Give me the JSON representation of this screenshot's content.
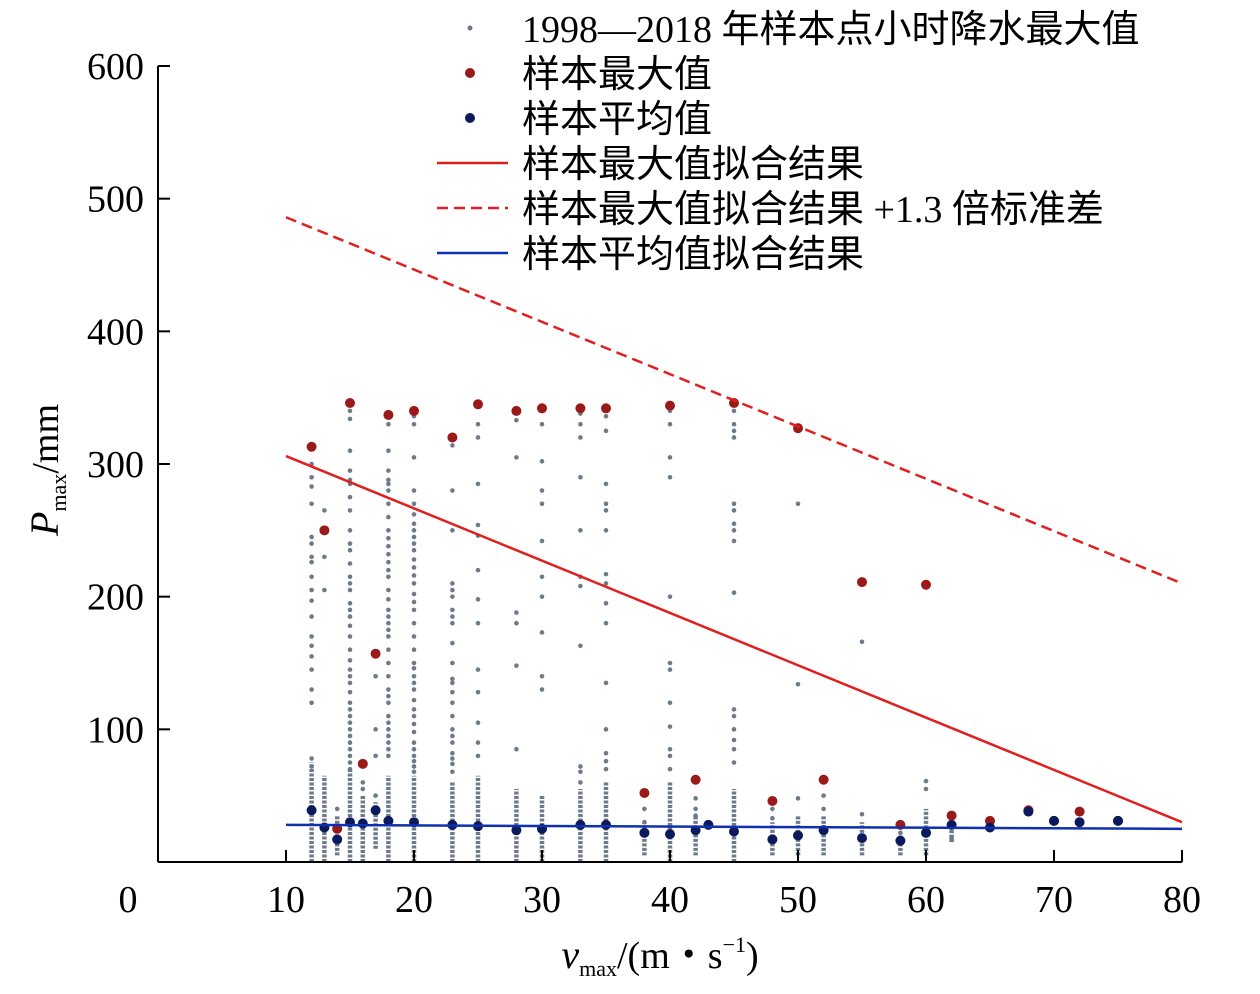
{
  "chart_data": {
    "type": "scatter",
    "xlabel": {
      "base": "v",
      "sub": "max",
      "unit": "/(m・s",
      "sup": "−1",
      "close": ")"
    },
    "ylabel": {
      "base": "P",
      "sub": "max",
      "unit": "/mm"
    },
    "xlim": [
      0,
      80
    ],
    "ylim": [
      0,
      600
    ],
    "xticks": [
      0,
      10,
      20,
      30,
      40,
      50,
      60,
      70,
      80
    ],
    "yticks": [
      100,
      200,
      300,
      400,
      500,
      600
    ],
    "grid": false,
    "legend_position": "top-right",
    "legend": [
      {
        "label": "1998—2018 年样本点小时降水最大值",
        "kind": "dot-small",
        "color": "#6e7a8a"
      },
      {
        "label": "样本最大值",
        "kind": "dot",
        "color": "#9a1a1a"
      },
      {
        "label": "样本平均值",
        "kind": "dot",
        "color": "#0a1a5c"
      },
      {
        "label": "样本最大值拟合结果",
        "kind": "line",
        "color": "#e02020"
      },
      {
        "label": "样本最大值拟合结果 +1.3 倍标准差",
        "kind": "dash",
        "color": "#e02020"
      },
      {
        "label": "样本平均值拟合结果",
        "kind": "line",
        "color": "#1030b0"
      }
    ],
    "series": [
      {
        "name": "样本最大值",
        "color": "#9a1a1a",
        "points": [
          [
            12,
            313
          ],
          [
            13,
            250
          ],
          [
            14,
            25
          ],
          [
            15,
            346
          ],
          [
            16,
            74
          ],
          [
            17,
            157
          ],
          [
            18,
            337
          ],
          [
            20,
            340
          ],
          [
            23,
            320
          ],
          [
            25,
            345
          ],
          [
            28,
            340
          ],
          [
            30,
            342
          ],
          [
            33,
            342
          ],
          [
            35,
            342
          ],
          [
            38,
            52
          ],
          [
            40,
            344
          ],
          [
            42,
            62
          ],
          [
            45,
            346
          ],
          [
            48,
            46
          ],
          [
            50,
            327
          ],
          [
            52,
            62
          ],
          [
            55,
            211
          ],
          [
            58,
            28
          ],
          [
            60,
            209
          ],
          [
            62,
            35
          ],
          [
            65,
            31
          ],
          [
            68,
            39
          ],
          [
            70,
            31
          ],
          [
            72,
            38
          ],
          [
            75,
            31
          ]
        ]
      },
      {
        "name": "样本平均值",
        "color": "#0a1a5c",
        "points": [
          [
            12,
            39
          ],
          [
            13,
            26
          ],
          [
            14,
            17
          ],
          [
            15,
            30
          ],
          [
            16,
            29
          ],
          [
            17,
            39
          ],
          [
            18,
            31
          ],
          [
            20,
            30
          ],
          [
            23,
            28
          ],
          [
            25,
            27
          ],
          [
            28,
            24
          ],
          [
            30,
            25
          ],
          [
            33,
            28
          ],
          [
            35,
            28
          ],
          [
            38,
            22
          ],
          [
            40,
            21
          ],
          [
            42,
            24
          ],
          [
            43,
            28
          ],
          [
            45,
            23
          ],
          [
            48,
            17
          ],
          [
            50,
            20
          ],
          [
            52,
            24
          ],
          [
            55,
            18
          ],
          [
            58,
            16
          ],
          [
            60,
            22
          ],
          [
            62,
            28
          ],
          [
            65,
            26
          ],
          [
            68,
            38
          ],
          [
            70,
            31
          ],
          [
            72,
            30
          ],
          [
            75,
            31
          ]
        ]
      },
      {
        "name": "样本最大值拟合结果",
        "color": "#e02020",
        "line": [
          [
            10,
            306
          ],
          [
            80,
            30
          ]
        ]
      },
      {
        "name": "样本最大值拟合结果 +1.3 倍标准差",
        "color": "#e02020",
        "dashed": true,
        "line": [
          [
            10,
            486
          ],
          [
            80,
            210
          ]
        ]
      },
      {
        "name": "样本平均值拟合结果",
        "color": "#1030b0",
        "line": [
          [
            10,
            28
          ],
          [
            80,
            25
          ]
        ]
      },
      {
        "name": "1998—2018 年样本点小时降水最大值",
        "color": "#6e7a8a",
        "columns": [
          {
            "x": 12,
            "extra": [
              300,
              290,
              283,
              270,
              245,
              240,
              230,
              226,
              215,
              205,
              197,
              185,
              170,
              163,
              155,
              145,
              130,
              120,
              78,
              72
            ]
          },
          {
            "x": 13,
            "extra": [
              265,
              230,
              205
            ]
          },
          {
            "x": 14,
            "extra": [
              40
            ]
          },
          {
            "x": 15,
            "extra": [
              340,
              334,
              310,
              295,
              288,
              285,
              275,
              265,
              250,
              240,
              235,
              225,
              215,
              210,
              205,
              195,
              190,
              185,
              178,
              170,
              160,
              152,
              145,
              140,
              135,
              128,
              120,
              115,
              110,
              105,
              100,
              95,
              90,
              85,
              80,
              75,
              70
            ]
          },
          {
            "x": 16,
            "extra": [
              60,
              55
            ]
          },
          {
            "x": 17,
            "extra": [
              140,
              100,
              80,
              50
            ]
          },
          {
            "x": 18,
            "extra": [
              335,
              330,
              310,
              295,
              288,
              285,
              280,
              270,
              260,
              250,
              244,
              238,
              232,
              226,
              220,
              215,
              205,
              198,
              190,
              185,
              180,
              175,
              170,
              160,
              150,
              140,
              130,
              125,
              120,
              110,
              105,
              100,
              95,
              90,
              85,
              80
            ]
          },
          {
            "x": 20,
            "extra": [
              336,
              330,
              305,
              280,
              270,
              262,
              255,
              250,
              245,
              240,
              235,
              228,
              222,
              216,
              210,
              202,
              196,
              190,
              180,
              170,
              160,
              150,
              146,
              140,
              135,
              130,
              122,
              115,
              110,
              104,
              98,
              90,
              85,
              80,
              76,
              72,
              68
            ]
          },
          {
            "x": 23,
            "extra": [
              314,
              280,
              250,
              210,
              205,
              200,
              190,
              185,
              180,
              165,
              150,
              138,
              135,
              128,
              120,
              110,
              100,
              95,
              90,
              82,
              78,
              74,
              68
            ]
          },
          {
            "x": 25,
            "extra": [
              330,
              320,
              285,
              254,
              246,
              220,
              198,
              180,
              145,
              128,
              105,
              90,
              80
            ]
          },
          {
            "x": 28,
            "extra": [
              333,
              305,
              188,
              180,
              148,
              85
            ]
          },
          {
            "x": 30,
            "extra": [
              340,
              330,
              302,
              280,
              270,
              242,
              215,
              200,
              173,
              140,
              130
            ]
          },
          {
            "x": 33,
            "extra": [
              338,
              330,
              320,
              290,
              250,
              215,
              208,
              163,
              72,
              68,
              60
            ]
          },
          {
            "x": 35,
            "extra": [
              340,
              336,
              325,
              285,
              270,
              265,
              250,
              217,
              210,
              195,
              180,
              135,
              100,
              82,
              76,
              70
            ]
          },
          {
            "x": 38,
            "extra": [
              40,
              30
            ]
          },
          {
            "x": 40,
            "extra": [
              340,
              330,
              305,
              290,
              200,
              150,
              145,
              120,
              102,
              85,
              80,
              70
            ]
          },
          {
            "x": 42,
            "extra": [
              48,
              40,
              35
            ]
          },
          {
            "x": 45,
            "extra": [
              340,
              330,
              325,
              320,
              270,
              265,
              255,
              250,
              242,
              203,
              115,
              110,
              100,
              92,
              85,
              75
            ]
          },
          {
            "x": 48,
            "extra": [
              40,
              33
            ]
          },
          {
            "x": 50,
            "extra": [
              270,
              134,
              48
            ]
          },
          {
            "x": 52,
            "extra": [
              50,
              40
            ]
          },
          {
            "x": 55,
            "extra": [
              166,
              36
            ]
          },
          {
            "x": 58,
            "extra": [
              22
            ]
          },
          {
            "x": 60,
            "extra": [
              61,
              55
            ]
          },
          {
            "x": 62,
            "extra": [
              18
            ]
          }
        ],
        "dense_columns": [
          {
            "x": 12,
            "from": 0,
            "to": 75
          },
          {
            "x": 13,
            "from": 0,
            "to": 65
          },
          {
            "x": 14,
            "from": 5,
            "to": 35
          },
          {
            "x": 15,
            "from": 0,
            "to": 70
          },
          {
            "x": 16,
            "from": 0,
            "to": 50
          },
          {
            "x": 17,
            "from": 10,
            "to": 45
          },
          {
            "x": 18,
            "from": 0,
            "to": 65
          },
          {
            "x": 20,
            "from": 0,
            "to": 65
          },
          {
            "x": 23,
            "from": 0,
            "to": 60
          },
          {
            "x": 25,
            "from": 0,
            "to": 65
          },
          {
            "x": 28,
            "from": 0,
            "to": 55
          },
          {
            "x": 30,
            "from": 0,
            "to": 50
          },
          {
            "x": 33,
            "from": 0,
            "to": 55
          },
          {
            "x": 35,
            "from": 0,
            "to": 60
          },
          {
            "x": 38,
            "from": 5,
            "to": 30
          },
          {
            "x": 40,
            "from": 0,
            "to": 60
          },
          {
            "x": 42,
            "from": 5,
            "to": 35
          },
          {
            "x": 45,
            "from": 0,
            "to": 55
          },
          {
            "x": 48,
            "from": 5,
            "to": 30
          },
          {
            "x": 50,
            "from": 5,
            "to": 35
          },
          {
            "x": 52,
            "from": 5,
            "to": 35
          },
          {
            "x": 55,
            "from": 5,
            "to": 30
          },
          {
            "x": 58,
            "from": 5,
            "to": 20
          },
          {
            "x": 60,
            "from": 5,
            "to": 40
          },
          {
            "x": 62,
            "from": 15,
            "to": 30
          }
        ]
      }
    ]
  }
}
